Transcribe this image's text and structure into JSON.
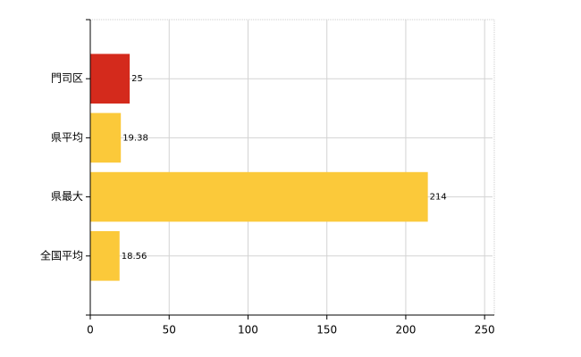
{
  "chart_data": {
    "type": "bar",
    "orientation": "horizontal",
    "categories": [
      "門司区",
      "県平均",
      "県最大",
      "全国平均"
    ],
    "values": [
      25,
      19.38,
      214,
      18.56
    ],
    "colors": [
      "#d42a1c",
      "#fbc93a",
      "#fbc93a",
      "#fbc93a"
    ],
    "xlim": [
      0,
      255
    ],
    "xticks": [
      0,
      50,
      100,
      150,
      200,
      250
    ],
    "grid": true
  }
}
